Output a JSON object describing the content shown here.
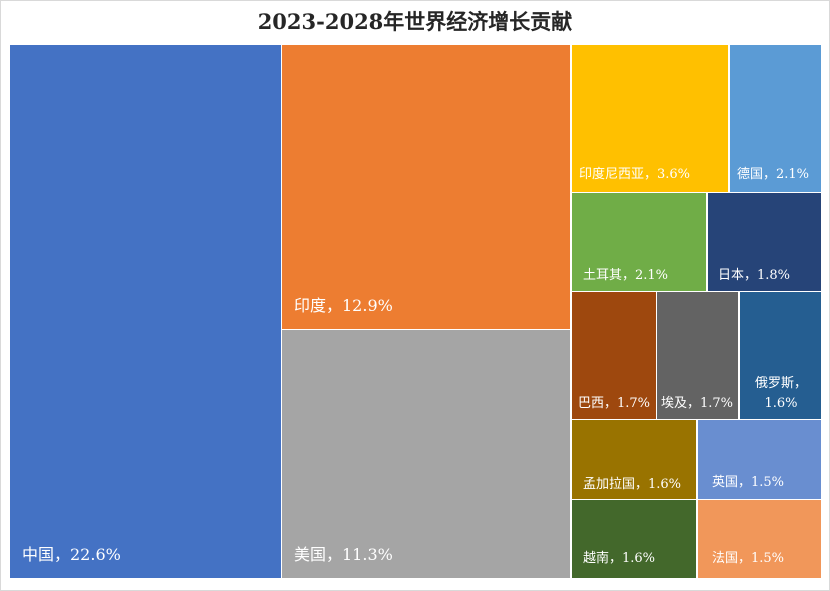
{
  "chart_data": {
    "type": "treemap",
    "title": "2023-2028年世界经济增长贡献",
    "items": [
      {
        "name": "中国",
        "label": "中国，22.6%",
        "value": 22.6,
        "color": "#4472C4"
      },
      {
        "name": "印度",
        "label": "印度，12.9%",
        "value": 12.9,
        "color": "#ED7D31"
      },
      {
        "name": "美国",
        "label": "美国，11.3%",
        "value": 11.3,
        "color": "#A5A5A5"
      },
      {
        "name": "印度尼西亚",
        "label": "印度尼西亚，3.6%",
        "value": 3.6,
        "color": "#FFC000"
      },
      {
        "name": "德国",
        "label": "德国，2.1%",
        "value": 2.1,
        "color": "#5B9BD5"
      },
      {
        "name": "土耳其",
        "label": "土耳其，2.1%",
        "value": 2.1,
        "color": "#70AD47"
      },
      {
        "name": "日本",
        "label": "日本，1.8%",
        "value": 1.8,
        "color": "#264478"
      },
      {
        "name": "巴西",
        "label": "巴西，1.7%",
        "value": 1.7,
        "color": "#9E480E"
      },
      {
        "name": "埃及",
        "label": "埃及，1.7%",
        "value": 1.7,
        "color": "#636363"
      },
      {
        "name": "俄罗斯",
        "label": "俄罗斯，1.6%",
        "value": 1.6,
        "color": "#255E91"
      },
      {
        "name": "孟加拉国",
        "label": "孟加拉国，1.6%",
        "value": 1.6,
        "color": "#997300"
      },
      {
        "name": "英国",
        "label": "英国，1.5%",
        "value": 1.5,
        "color": "#698ED0"
      },
      {
        "name": "越南",
        "label": "越南，1.6%",
        "value": 1.6,
        "color": "#43682B"
      },
      {
        "name": "法国",
        "label": "法国，1.5%",
        "value": 1.5,
        "color": "#F1975A"
      }
    ]
  }
}
